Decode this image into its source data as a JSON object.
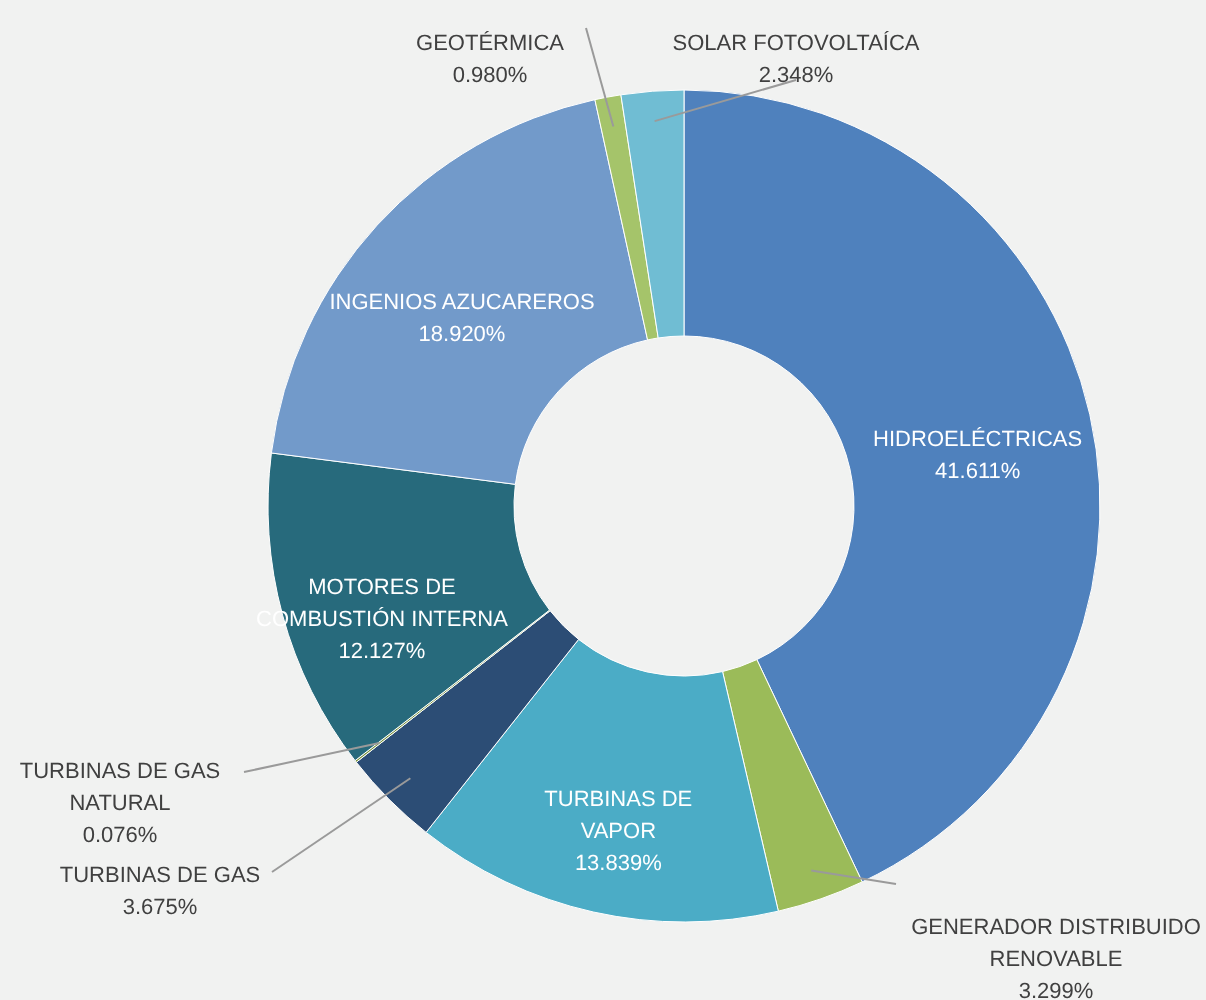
{
  "chart_data": {
    "type": "donut",
    "categories": [
      "HIDROELÉCTRICAS",
      "GENERADOR DISTRIBUIDO RENOVABLE",
      "TURBINAS DE VAPOR",
      "TURBINAS DE GAS",
      "TURBINAS DE GAS NATURAL",
      "MOTORES DE COMBUSTIÓN INTERNA",
      "INGENIOS AZUCAREROS",
      "GEOTÉRMICA",
      "SOLAR FOTOVOLTAÍCA"
    ],
    "values": [
      41.611,
      3.299,
      13.839,
      3.675,
      0.076,
      12.127,
      18.92,
      0.98,
      2.348
    ],
    "value_labels": [
      "41.611%",
      "3.299%",
      "13.839%",
      "3.675%",
      "0.076%",
      "12.127%",
      "18.920%",
      "0.980%",
      "2.348%"
    ],
    "colors": [
      "#4f81bd",
      "#9bbb59",
      "#4bacc6",
      "#2c4d75",
      "#77933c",
      "#276a7c",
      "#729aca",
      "#a5c46a",
      "#70bdd3"
    ]
  }
}
